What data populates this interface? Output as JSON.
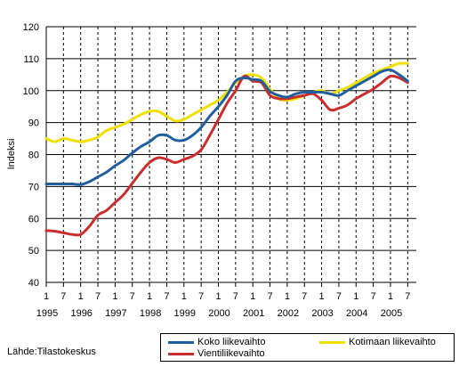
{
  "source_label": "Lähde:Tilastokeskus",
  "colors": {
    "koko": "#1f5f9f",
    "kotimaan": "#f0e000",
    "vienti": "#cc2c2c"
  },
  "chart_data": {
    "type": "line",
    "title": "",
    "ylabel": "Indeksi",
    "xlabel": "",
    "ylim": [
      40,
      120
    ],
    "yticks": [
      40,
      50,
      60,
      70,
      80,
      90,
      100,
      110,
      120
    ],
    "xlim": [
      1995.0,
      2005.75
    ],
    "x_month_ticks": [
      "1",
      "7",
      "1",
      "7",
      "1",
      "7",
      "1",
      "7",
      "1",
      "7",
      "1",
      "7",
      "1",
      "7",
      "1",
      "7",
      "1",
      "7",
      "1",
      "7",
      "1",
      "7"
    ],
    "x_year_labels": [
      "1995",
      "1996",
      "1997",
      "1998",
      "1999",
      "2000",
      "2001",
      "2002",
      "2003",
      "2004",
      "2005"
    ],
    "grid": true,
    "legend_position": "bottom-right",
    "x": [
      1995.0,
      1995.25,
      1995.5,
      1995.75,
      1996.0,
      1996.25,
      1996.5,
      1996.75,
      1997.0,
      1997.25,
      1997.5,
      1997.75,
      1998.0,
      1998.25,
      1998.5,
      1998.75,
      1999.0,
      1999.25,
      1999.5,
      1999.75,
      2000.0,
      2000.25,
      2000.5,
      2000.75,
      2001.0,
      2001.25,
      2001.5,
      2001.75,
      2002.0,
      2002.25,
      2002.5,
      2002.75,
      2003.0,
      2003.25,
      2003.5,
      2003.75,
      2004.0,
      2004.25,
      2004.5,
      2004.75,
      2005.0,
      2005.25,
      2005.5
    ],
    "series": [
      {
        "name": "Koko liikevaihto",
        "color_key": "koko",
        "values": [
          70.8,
          70.8,
          70.8,
          70.8,
          70.6,
          71.5,
          73.0,
          74.5,
          76.5,
          78.2,
          80.5,
          82.5,
          84.0,
          86.0,
          86.0,
          84.5,
          84.5,
          86.0,
          88.5,
          92.0,
          95.0,
          98.5,
          103.0,
          104.0,
          103.5,
          103.0,
          99.8,
          98.5,
          98.0,
          99.0,
          99.5,
          99.5,
          99.5,
          99.0,
          98.5,
          100.0,
          101.5,
          103.0,
          104.5,
          106.0,
          106.5,
          105.0,
          103.0
        ]
      },
      {
        "name": "Kotimaan liikevaihto",
        "color_key": "kotimaan",
        "values": [
          85.0,
          84.0,
          85.0,
          84.5,
          84.0,
          84.5,
          85.5,
          87.5,
          88.5,
          89.5,
          91.0,
          92.5,
          93.5,
          93.5,
          92.0,
          90.5,
          91.0,
          92.5,
          94.0,
          95.5,
          97.0,
          99.5,
          102.5,
          104.5,
          105.0,
          104.0,
          100.5,
          97.5,
          97.0,
          97.5,
          98.5,
          99.5,
          100.0,
          99.0,
          100.0,
          101.0,
          102.5,
          104.0,
          105.5,
          106.5,
          107.5,
          108.5,
          108.5
        ]
      },
      {
        "name": "Vientiliikevaihto",
        "color_key": "vienti",
        "values": [
          56.2,
          56.0,
          55.5,
          55.0,
          55.0,
          57.5,
          61.0,
          62.5,
          65.0,
          67.5,
          71.0,
          74.5,
          77.5,
          79.0,
          78.5,
          77.5,
          78.5,
          79.5,
          81.5,
          86.0,
          91.0,
          96.0,
          100.0,
          104.5,
          103.0,
          102.5,
          98.5,
          97.5,
          97.5,
          98.0,
          98.5,
          99.0,
          97.0,
          94.0,
          94.5,
          95.5,
          97.5,
          99.0,
          100.5,
          102.5,
          104.5,
          104.0,
          102.5
        ]
      }
    ]
  }
}
